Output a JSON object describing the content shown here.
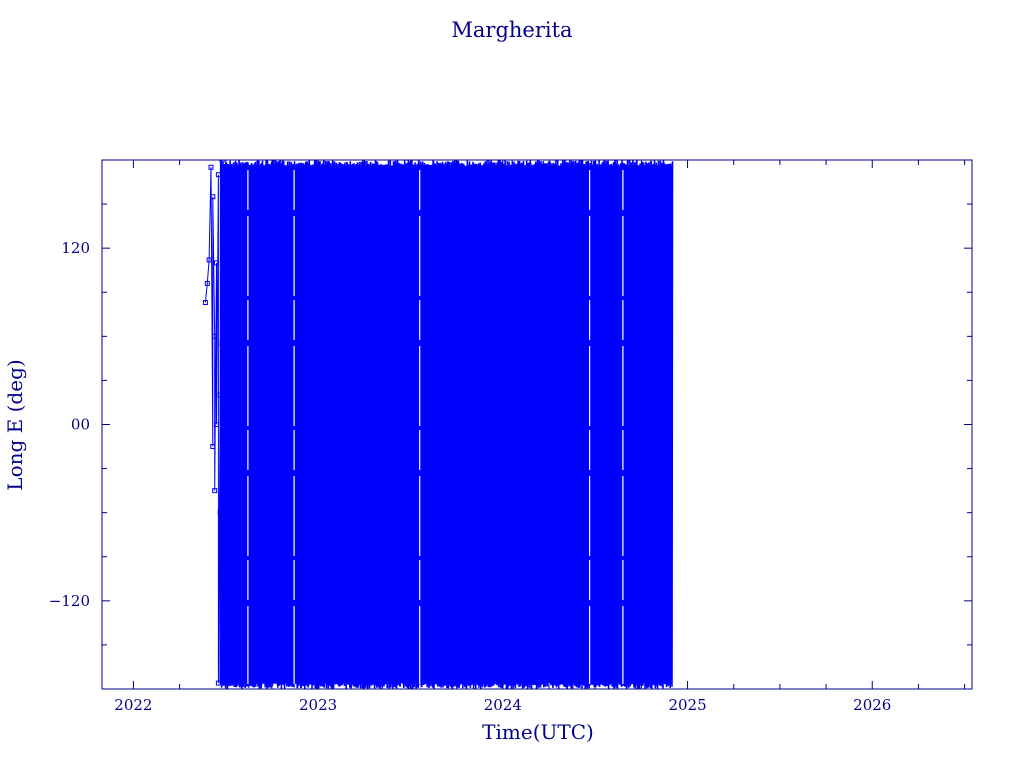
{
  "chart_data": {
    "type": "line",
    "title": "Margherita",
    "xlabel": "Time(UTC)",
    "ylabel": "Long E (deg)",
    "x_range": [
      2021.83,
      2026.54
    ],
    "ylim": [
      -180,
      180
    ],
    "x_ticks": [
      {
        "value": 2022,
        "label": "2022"
      },
      {
        "value": 2023,
        "label": "2023"
      },
      {
        "value": 2024,
        "label": "2024"
      },
      {
        "value": 2025,
        "label": "2025"
      },
      {
        "value": 2026,
        "label": "2026"
      }
    ],
    "y_ticks": [
      {
        "value": 120,
        "label": "120"
      },
      {
        "value": 0,
        "label": "00"
      },
      {
        "value": -120,
        "label": "−120"
      }
    ],
    "y_minor_step": 30,
    "x_minor_step": 0.25,
    "grid": false,
    "series": [
      {
        "data_start": 2022.39,
        "data_end": 2024.92,
        "dense_start": 2022.47,
        "color": "#0000ff",
        "marker": "square",
        "points": [
          [
            2022.39,
            83
          ],
          [
            2022.4,
            96
          ],
          [
            2022.41,
            112
          ],
          [
            2022.42,
            175
          ],
          [
            2022.43,
            -15
          ],
          [
            2022.43,
            155
          ],
          [
            2022.44,
            60
          ],
          [
            2022.44,
            -45
          ],
          [
            2022.45,
            110
          ],
          [
            2022.45,
            0
          ],
          [
            2022.46,
            170
          ],
          [
            2022.46,
            -176
          ],
          [
            2022.47,
            20
          ],
          [
            2022.47,
            -60
          ],
          [
            2022.48,
            180
          ],
          [
            2022.48,
            55
          ],
          [
            2022.49,
            -10
          ],
          [
            2022.49,
            175
          ],
          [
            2022.5,
            40
          ],
          [
            2022.5,
            -150
          ]
        ]
      }
    ]
  }
}
